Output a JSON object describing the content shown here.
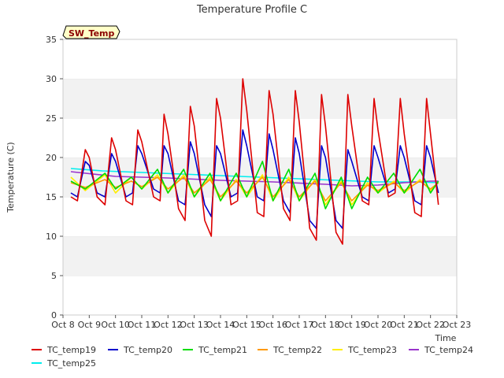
{
  "chart_data": {
    "type": "line",
    "title": "Temperature Profile C",
    "xlabel": "Time",
    "ylabel": "Temperature (C)",
    "ylim": [
      0,
      35
    ],
    "xlim": [
      0,
      15
    ],
    "yticks": [
      0,
      5,
      10,
      15,
      20,
      25,
      30,
      35
    ],
    "xticks": [
      "Oct 8",
      "Oct 9",
      "Oct 10",
      "Oct 11",
      "Oct 12",
      "Oct 13",
      "Oct 14",
      "Oct 15",
      "Oct 16",
      "Oct 17",
      "Oct 18",
      "Oct 19",
      "Oct 20",
      "Oct 21",
      "Oct 22",
      "Oct 23"
    ],
    "grid": "horizontal bands",
    "badge": "SW_Temp",
    "legend_position": "bottom",
    "series": [
      {
        "name": "TC_temp19",
        "color": "#dd0000",
        "x": [
          0.3,
          0.55,
          0.85,
          1.0,
          1.3,
          1.6,
          1.85,
          2.0,
          2.4,
          2.65,
          2.85,
          3.0,
          3.45,
          3.7,
          3.85,
          4.0,
          4.4,
          4.65,
          4.85,
          5.0,
          5.4,
          5.65,
          5.85,
          6.0,
          6.4,
          6.65,
          6.85,
          7.0,
          7.4,
          7.65,
          7.85,
          8.0,
          8.4,
          8.65,
          8.85,
          9.0,
          9.4,
          9.65,
          9.85,
          10.0,
          10.4,
          10.65,
          10.85,
          11.0,
          11.4,
          11.65,
          11.85,
          12.0,
          12.4,
          12.65,
          12.85,
          13.0,
          13.4,
          13.65,
          13.85,
          14.0,
          14.3
        ],
        "y": [
          15.0,
          14.5,
          21.0,
          20.0,
          15.0,
          14.0,
          22.5,
          21.0,
          14.5,
          14.0,
          23.5,
          22.0,
          15.0,
          14.5,
          25.5,
          23.0,
          13.5,
          12.0,
          26.5,
          24.0,
          12.0,
          10.0,
          27.5,
          25.0,
          14.0,
          14.5,
          30.0,
          26.0,
          13.0,
          12.5,
          28.5,
          25.5,
          13.5,
          12.0,
          28.5,
          24.5,
          11.0,
          9.5,
          28.0,
          24.0,
          10.5,
          9.0,
          28.0,
          24.0,
          14.5,
          14.0,
          27.5,
          23.5,
          15.0,
          15.5,
          27.5,
          23.0,
          13.0,
          12.5,
          27.5,
          23.0,
          14.0
        ]
      },
      {
        "name": "TC_temp20",
        "color": "#0000cc",
        "x": [
          0.3,
          0.55,
          0.85,
          1.0,
          1.3,
          1.6,
          1.85,
          2.0,
          2.4,
          2.65,
          2.85,
          3.0,
          3.45,
          3.7,
          3.85,
          4.0,
          4.4,
          4.65,
          4.85,
          5.0,
          5.4,
          5.65,
          5.85,
          6.0,
          6.4,
          6.65,
          6.85,
          7.0,
          7.4,
          7.65,
          7.85,
          8.0,
          8.4,
          8.65,
          8.85,
          9.0,
          9.4,
          9.65,
          9.85,
          10.0,
          10.4,
          10.65,
          10.85,
          11.0,
          11.4,
          11.65,
          11.85,
          12.0,
          12.4,
          12.65,
          12.85,
          13.0,
          13.4,
          13.65,
          13.85,
          14.0,
          14.3
        ],
        "y": [
          15.5,
          15.0,
          19.5,
          19.0,
          15.5,
          15.0,
          20.5,
          19.5,
          15.0,
          15.5,
          21.5,
          20.5,
          16.0,
          15.5,
          21.5,
          20.5,
          14.5,
          14.0,
          22.0,
          20.5,
          14.0,
          12.5,
          21.5,
          20.5,
          15.0,
          15.5,
          23.5,
          21.5,
          15.0,
          14.5,
          23.0,
          21.0,
          14.5,
          13.0,
          22.5,
          20.5,
          12.0,
          11.0,
          21.5,
          20.0,
          12.0,
          11.0,
          21.0,
          19.5,
          15.0,
          14.5,
          21.5,
          20.0,
          15.5,
          16.0,
          21.5,
          20.0,
          14.5,
          14.0,
          21.5,
          20.0,
          15.5
        ]
      },
      {
        "name": "TC_temp21",
        "color": "#00dd00",
        "x": [
          0.3,
          0.85,
          1.6,
          2.0,
          2.6,
          3.0,
          3.6,
          4.0,
          4.6,
          5.0,
          5.6,
          6.0,
          6.6,
          7.0,
          7.6,
          8.0,
          8.6,
          9.0,
          9.6,
          10.0,
          10.6,
          11.0,
          11.6,
          12.0,
          12.6,
          13.0,
          13.6,
          14.0,
          14.3
        ],
        "y": [
          17.0,
          16.0,
          18.0,
          16.0,
          17.5,
          16.0,
          18.5,
          15.5,
          18.5,
          15.0,
          18.0,
          14.5,
          18.0,
          15.0,
          19.5,
          14.5,
          18.5,
          14.5,
          18.0,
          13.5,
          17.5,
          13.5,
          17.5,
          15.5,
          18.0,
          15.5,
          18.5,
          15.5,
          17.0
        ]
      },
      {
        "name": "TC_temp22",
        "color": "#ff9900",
        "x": [
          0.3,
          0.85,
          1.6,
          2.0,
          2.6,
          3.0,
          3.6,
          4.0,
          4.6,
          5.0,
          5.6,
          6.0,
          6.6,
          7.0,
          7.6,
          8.0,
          8.6,
          9.0,
          9.6,
          10.0,
          10.6,
          11.0,
          11.6,
          12.0,
          12.6,
          13.0,
          13.6,
          14.0,
          14.3
        ],
        "y": [
          16.8,
          16.2,
          17.2,
          16.2,
          17.0,
          16.3,
          17.5,
          16.0,
          17.5,
          15.5,
          17.2,
          15.0,
          17.0,
          15.5,
          17.5,
          15.0,
          17.2,
          15.0,
          17.0,
          14.5,
          16.8,
          14.5,
          16.5,
          15.8,
          16.8,
          15.8,
          17.0,
          16.0,
          16.8
        ]
      },
      {
        "name": "TC_temp23",
        "color": "#ffee00",
        "x": [
          0.3,
          0.85,
          1.6,
          2.0,
          2.6,
          3.0,
          3.6,
          4.0,
          4.6,
          5.0,
          5.6,
          6.0,
          6.6,
          7.0,
          7.6,
          8.0,
          8.6,
          9.0,
          9.6,
          10.0,
          10.6,
          11.0,
          11.6,
          12.0,
          12.6,
          13.0,
          13.6,
          14.0,
          14.3
        ],
        "y": [
          17.5,
          15.8,
          17.8,
          15.5,
          17.5,
          16.0,
          17.8,
          15.5,
          17.8,
          15.0,
          17.5,
          14.5,
          17.2,
          15.0,
          17.8,
          14.5,
          17.5,
          14.5,
          17.2,
          14.0,
          17.0,
          14.0,
          16.8,
          15.5,
          17.0,
          15.5,
          17.2,
          15.8,
          16.8
        ]
      },
      {
        "name": "TC_temp24",
        "color": "#9933cc",
        "x": [
          0.3,
          2.0,
          4.0,
          6.0,
          8.0,
          10.0,
          11.0,
          12.0,
          13.0,
          14.0,
          14.3
        ],
        "y": [
          18.2,
          17.6,
          17.4,
          17.1,
          16.9,
          16.6,
          16.4,
          16.5,
          16.8,
          17.0,
          17.0
        ]
      },
      {
        "name": "TC_temp25",
        "color": "#00eeee",
        "x": [
          0.3,
          1.5,
          3.0,
          4.5,
          6.0,
          7.5,
          9.0,
          10.5,
          12.0,
          13.5,
          14.3
        ],
        "y": [
          18.6,
          18.3,
          18.1,
          17.9,
          17.7,
          17.5,
          17.3,
          17.1,
          16.9,
          16.9,
          16.8
        ]
      }
    ]
  }
}
